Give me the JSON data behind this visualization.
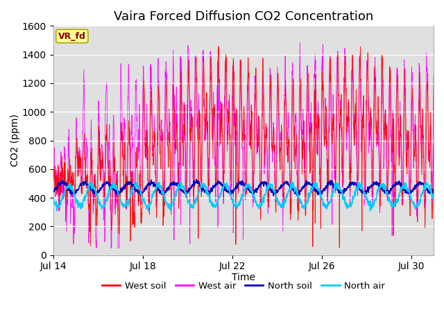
{
  "title": "Vaira Forced Diffusion CO2 Concentration",
  "xlabel": "Time",
  "ylabel": "CO2 (ppm)",
  "ylim": [
    0,
    1600
  ],
  "yticks": [
    0,
    200,
    400,
    600,
    800,
    1000,
    1200,
    1400,
    1600
  ],
  "xtick_labels": [
    "Jul 14",
    "Jul 18",
    "Jul 22",
    "Jul 26",
    "Jul 30"
  ],
  "xtick_positions": [
    0,
    4,
    8,
    12,
    16
  ],
  "n_days": 17,
  "pts_per_day": 96,
  "legend_labels": [
    "West soil",
    "West air",
    "North soil",
    "North air"
  ],
  "legend_colors": [
    "#ff0000",
    "#ff00ff",
    "#0000bb",
    "#00ccff"
  ],
  "label_tag": "VR_fd",
  "label_tag_bg": "#ffff99",
  "label_tag_border": "#aaaa00",
  "bg_color": "#e0e0e0",
  "grid_color": "#ffffff",
  "title_fontsize": 13,
  "axis_fontsize": 10,
  "tick_fontsize": 10
}
